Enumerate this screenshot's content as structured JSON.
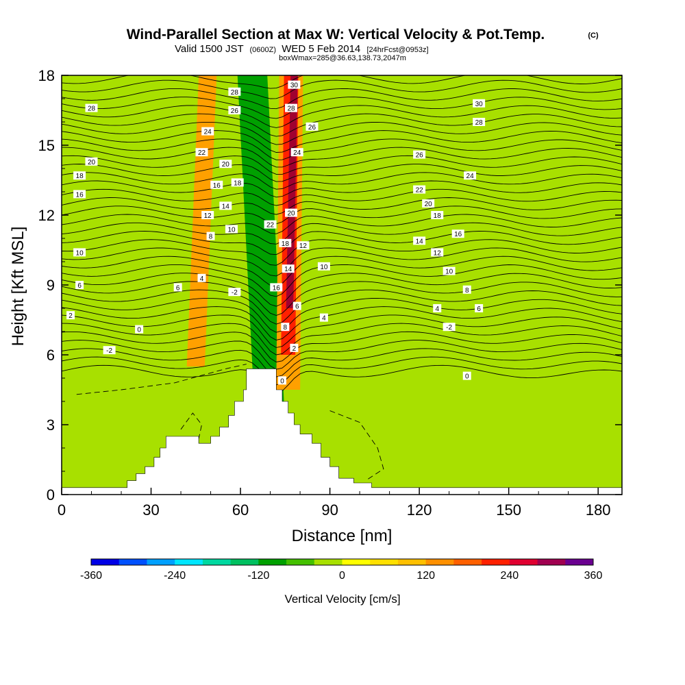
{
  "page": {
    "title": "Wind-Parallel Section at Max W: Vertical Velocity & Pot.Temp.",
    "copyright": "(C)",
    "subtitle_main_a": "Valid 1500 JST",
    "subtitle_small_a": "(0600Z)",
    "subtitle_main_b": "WED 5 Feb 2014",
    "subtitle_small_b": "[24hrFcst@0953z]",
    "box_line": "boxWmax=285@36.63,138.73,2047m"
  },
  "chart_data": {
    "type": "heatmap",
    "title": "Wind-Parallel Section at Max W: Vertical Velocity & Pot.Temp.",
    "xlabel": "Distance [nm]",
    "ylabel": "Height [Kft MSL]",
    "xlim": [
      0,
      188
    ],
    "ylim": [
      0,
      18
    ],
    "xticks": [
      0,
      30,
      60,
      90,
      120,
      150,
      180
    ],
    "yticks": [
      0,
      3,
      6,
      9,
      12,
      15,
      18
    ],
    "colorbar": {
      "label": "Vertical Velocity [cm/s]",
      "range": [
        -360,
        360
      ],
      "tick_labels": [
        "-360",
        "-240",
        "-120",
        "0",
        "120",
        "240",
        "360"
      ],
      "tick_values": [
        -360,
        -240,
        -120,
        0,
        120,
        240,
        360
      ],
      "colors": [
        "#0000e6",
        "#0050ff",
        "#00a0ff",
        "#00e6ff",
        "#00d8a0",
        "#00c060",
        "#00a000",
        "#44c000",
        "#a8e000",
        "#ffff00",
        "#ffe000",
        "#ffc000",
        "#ff9000",
        "#ff6000",
        "#ff2000",
        "#e00030",
        "#a00050",
        "#6a0090"
      ]
    },
    "vertical_velocity_bands": [
      {
        "name": "downdraft-core",
        "x_bottom": 70,
        "x_top": 66,
        "half_width": 1.6,
        "y_bottom": 5,
        "y_top": 18,
        "color": "#0050ff"
      },
      {
        "name": "downdraft-mid",
        "x_bottom": 70,
        "x_top": 65,
        "half_width": 3.2,
        "y_bottom": 4.5,
        "y_top": 18,
        "color": "#00c0e0"
      },
      {
        "name": "downdraft-outer",
        "x_bottom": 70,
        "x_top": 64,
        "half_width": 5,
        "y_bottom": 3,
        "y_top": 18,
        "color": "#00a000"
      },
      {
        "name": "updraft-outer",
        "x_bottom": 76,
        "x_top": 77,
        "half_width": 4,
        "y_bottom": 4.5,
        "y_top": 18,
        "color": "#ffa000"
      },
      {
        "name": "updraft-mid",
        "x_bottom": 76,
        "x_top": 77,
        "half_width": 2.4,
        "y_bottom": 6,
        "y_top": 18,
        "color": "#ff2000"
      },
      {
        "name": "updraft-core",
        "x_bottom": 76.5,
        "x_top": 78,
        "half_width": 1.2,
        "y_bottom": 8,
        "y_top": 18,
        "color": "#a00030"
      },
      {
        "name": "upstream-updraft",
        "x_bottom": 45,
        "x_top": 49,
        "half_width": 3,
        "y_bottom": 5.5,
        "y_top": 18,
        "color": "#ffa000"
      }
    ],
    "potential_temperature_labels": [
      {
        "text": "28",
        "x": 10,
        "y": 16.6
      },
      {
        "text": "20",
        "x": 10,
        "y": 14.3
      },
      {
        "text": "18",
        "x": 6,
        "y": 13.7
      },
      {
        "text": "16",
        "x": 6,
        "y": 12.9
      },
      {
        "text": "10",
        "x": 6,
        "y": 10.4
      },
      {
        "text": "6",
        "x": 6,
        "y": 9.0
      },
      {
        "text": "2",
        "x": 3,
        "y": 7.7
      },
      {
        "text": "0",
        "x": 26,
        "y": 7.1
      },
      {
        "text": "-2",
        "x": 16,
        "y": 6.2
      },
      {
        "text": "24",
        "x": 49,
        "y": 15.6
      },
      {
        "text": "22",
        "x": 47,
        "y": 14.7
      },
      {
        "text": "12",
        "x": 49,
        "y": 12.0
      },
      {
        "text": "8",
        "x": 50,
        "y": 11.1
      },
      {
        "text": "4",
        "x": 47,
        "y": 9.3
      },
      {
        "text": "6",
        "x": 39,
        "y": 8.9
      },
      {
        "text": "28",
        "x": 58,
        "y": 17.3
      },
      {
        "text": "26",
        "x": 58,
        "y": 16.5
      },
      {
        "text": "20",
        "x": 55,
        "y": 14.2
      },
      {
        "text": "18",
        "x": 59,
        "y": 13.4
      },
      {
        "text": "16",
        "x": 52,
        "y": 13.3
      },
      {
        "text": "14",
        "x": 55,
        "y": 12.4
      },
      {
        "text": "10",
        "x": 57,
        "y": 11.4
      },
      {
        "text": "-2",
        "x": 58,
        "y": 8.7
      },
      {
        "text": "22",
        "x": 70,
        "y": 11.6
      },
      {
        "text": "16",
        "x": 72,
        "y": 8.9
      },
      {
        "text": "30",
        "x": 78,
        "y": 17.6
      },
      {
        "text": "28",
        "x": 77,
        "y": 16.6
      },
      {
        "text": "24",
        "x": 79,
        "y": 14.7
      },
      {
        "text": "20",
        "x": 77,
        "y": 12.1
      },
      {
        "text": "18",
        "x": 75,
        "y": 10.8
      },
      {
        "text": "14",
        "x": 76,
        "y": 9.7
      },
      {
        "text": "6",
        "x": 79,
        "y": 8.1
      },
      {
        "text": "8",
        "x": 75,
        "y": 7.2
      },
      {
        "text": "2",
        "x": 78,
        "y": 6.3
      },
      {
        "text": "0",
        "x": 74,
        "y": 4.9
      },
      {
        "text": "12",
        "x": 81,
        "y": 10.7
      },
      {
        "text": "10",
        "x": 88,
        "y": 9.8
      },
      {
        "text": "4",
        "x": 88,
        "y": 7.6
      },
      {
        "text": "26",
        "x": 84,
        "y": 15.8
      },
      {
        "text": "30",
        "x": 140,
        "y": 16.8
      },
      {
        "text": "28",
        "x": 140,
        "y": 16.0
      },
      {
        "text": "26",
        "x": 120,
        "y": 14.6
      },
      {
        "text": "24",
        "x": 137,
        "y": 13.7
      },
      {
        "text": "22",
        "x": 120,
        "y": 13.1
      },
      {
        "text": "20",
        "x": 123,
        "y": 12.5
      },
      {
        "text": "18",
        "x": 126,
        "y": 12.0
      },
      {
        "text": "16",
        "x": 133,
        "y": 11.2
      },
      {
        "text": "14",
        "x": 120,
        "y": 10.9
      },
      {
        "text": "12",
        "x": 126,
        "y": 10.4
      },
      {
        "text": "10",
        "x": 130,
        "y": 9.6
      },
      {
        "text": "8",
        "x": 136,
        "y": 8.8
      },
      {
        "text": "6",
        "x": 140,
        "y": 8.0
      },
      {
        "text": "4",
        "x": 126,
        "y": 8.0
      },
      {
        "text": "-2",
        "x": 130,
        "y": 7.2
      },
      {
        "text": "0",
        "x": 136,
        "y": 5.1
      }
    ],
    "terrain": {
      "fill": "#ffffff",
      "points": [
        [
          0,
          0
        ],
        [
          0,
          0.3
        ],
        [
          22,
          0.3
        ],
        [
          22,
          0.6
        ],
        [
          25,
          0.6
        ],
        [
          25,
          0.9
        ],
        [
          28,
          0.9
        ],
        [
          28,
          1.2
        ],
        [
          31,
          1.2
        ],
        [
          31,
          1.6
        ],
        [
          33,
          1.6
        ],
        [
          33,
          2.0
        ],
        [
          35,
          2.0
        ],
        [
          35,
          2.5
        ],
        [
          39,
          2.5
        ],
        [
          41,
          2.5
        ],
        [
          46,
          2.5
        ],
        [
          46,
          2.2
        ],
        [
          50,
          2.2
        ],
        [
          50,
          2.5
        ],
        [
          53,
          2.5
        ],
        [
          53,
          2.9
        ],
        [
          56,
          2.9
        ],
        [
          56,
          3.4
        ],
        [
          58,
          3.4
        ],
        [
          58,
          4.0
        ],
        [
          61,
          4.0
        ],
        [
          61,
          4.5
        ],
        [
          62,
          4.5
        ],
        [
          62,
          5.4
        ],
        [
          72,
          5.4
        ],
        [
          72,
          4.5
        ],
        [
          74,
          4.5
        ],
        [
          74,
          4.0
        ],
        [
          76,
          4.0
        ],
        [
          76,
          3.5
        ],
        [
          78,
          3.5
        ],
        [
          78,
          3.0
        ],
        [
          80,
          3.0
        ],
        [
          80,
          2.6
        ],
        [
          84,
          2.6
        ],
        [
          84,
          2.2
        ],
        [
          87,
          2.2
        ],
        [
          87,
          1.6
        ],
        [
          90,
          1.6
        ],
        [
          90,
          1.2
        ],
        [
          93,
          1.2
        ],
        [
          93,
          0.7
        ],
        [
          98,
          0.7
        ],
        [
          98,
          0.5
        ],
        [
          104,
          0.5
        ],
        [
          104,
          0.3
        ],
        [
          188,
          0.3
        ],
        [
          188,
          0
        ]
      ]
    }
  }
}
